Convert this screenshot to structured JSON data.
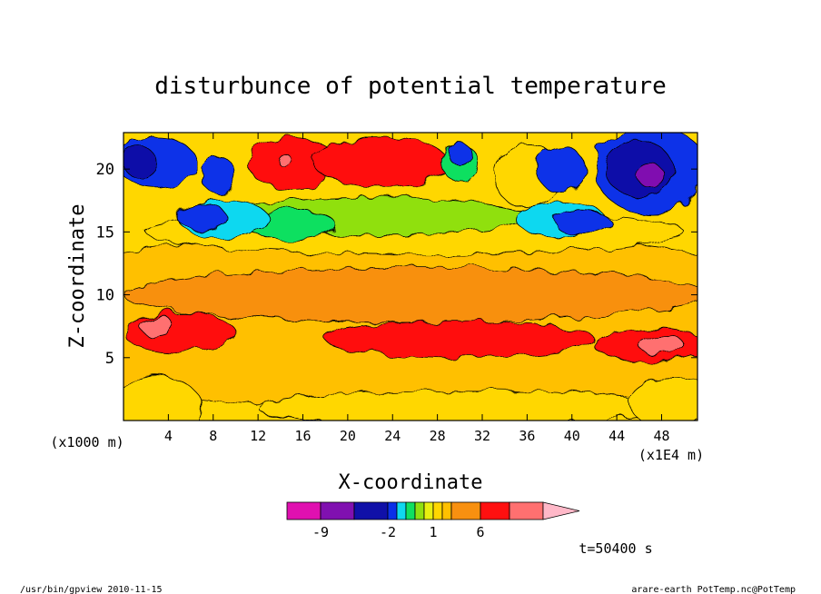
{
  "chart_data": {
    "type": "heatmap",
    "title": "disturbunce of potential temperature",
    "xlabel": "X-coordinate",
    "ylabel": "Z-coordinate",
    "x_unit_left": "(x1000 m)",
    "x_unit_right": "(x1E4 m)",
    "xlim": [
      0,
      51.2
    ],
    "ylim": [
      0,
      22.9
    ],
    "x_ticks": [
      4,
      8,
      12,
      16,
      20,
      24,
      28,
      32,
      36,
      40,
      44,
      48
    ],
    "y_ticks": [
      5,
      10,
      15,
      20
    ],
    "time_label": "t=50400 s",
    "colorbar": {
      "levels": [
        -12,
        -9,
        -6,
        -2,
        -1.5,
        -1,
        -0.5,
        0.5,
        1,
        1.5,
        2,
        6,
        9,
        12
      ],
      "tick_labels": [
        "-9",
        "-2",
        "1",
        "6"
      ],
      "colors": [
        "#e010b0",
        "#8010b0",
        "#1010a8",
        "#0a30e8",
        "#10d8f0",
        "#10e060",
        "#90e010",
        "#e8f010",
        "#ffd700",
        "#ffc000",
        "#f89010",
        "#ff1010",
        "#ff7070",
        "#ffb8c8"
      ]
    },
    "regions": [
      {
        "value": 1.2,
        "x": 25,
        "z": 8,
        "rx": 40,
        "rz": 7
      },
      {
        "value": 1.7,
        "x": 26,
        "z": 10,
        "rx": 26,
        "rz": 2.2
      },
      {
        "value": 2.5,
        "x": 30,
        "z": 6.5,
        "rx": 12,
        "rz": 1.4
      },
      {
        "value": 2.5,
        "x": 5,
        "z": 7,
        "rx": 5,
        "rz": 1.6
      },
      {
        "value": 2.5,
        "x": 47,
        "z": 6,
        "rx": 5,
        "rz": 1.4
      },
      {
        "value": 7,
        "x": 3,
        "z": 7.5,
        "rx": 1.5,
        "rz": 0.8
      },
      {
        "value": 7,
        "x": 48,
        "z": 6,
        "rx": 2,
        "rz": 0.8
      },
      {
        "value": 0.7,
        "x": 30,
        "z": 1,
        "rx": 18,
        "rz": 1.4
      },
      {
        "value": 0.7,
        "x": 3,
        "z": 1,
        "rx": 4,
        "rz": 2.5
      },
      {
        "value": 0.7,
        "x": 49,
        "z": 1.5,
        "rx": 4,
        "rz": 2
      },
      {
        "value": 0.7,
        "x": 26,
        "z": 15,
        "rx": 24,
        "rz": 1.8
      },
      {
        "value": -0.7,
        "x": 22,
        "z": 16.2,
        "rx": 14,
        "rz": 1.5
      },
      {
        "value": -1.2,
        "x": 15,
        "z": 15.5,
        "rx": 4,
        "rz": 1.2
      },
      {
        "value": -1.7,
        "x": 9,
        "z": 16,
        "rx": 4,
        "rz": 1.5
      },
      {
        "value": -1.7,
        "x": 39,
        "z": 16,
        "rx": 4,
        "rz": 1.3
      },
      {
        "value": -3,
        "x": 7,
        "z": 16.2,
        "rx": 2.2,
        "rz": 1
      },
      {
        "value": -3,
        "x": 41,
        "z": 15.7,
        "rx": 2.5,
        "rz": 0.9
      },
      {
        "value": 2.5,
        "x": 15,
        "z": 20.5,
        "rx": 4,
        "rz": 2
      },
      {
        "value": 2.5,
        "x": 23,
        "z": 20.5,
        "rx": 6,
        "rz": 2
      },
      {
        "value": 7,
        "x": 14.5,
        "z": 20.6,
        "rx": 0.6,
        "rz": 0.5
      },
      {
        "value": 0.7,
        "x": 36,
        "z": 19.5,
        "rx": 3,
        "rz": 2.5
      },
      {
        "value": -1.2,
        "x": 30,
        "z": 20.5,
        "rx": 1.6,
        "rz": 1.5
      },
      {
        "value": -3,
        "x": 30,
        "z": 21.2,
        "rx": 1,
        "rz": 0.9
      },
      {
        "value": -3,
        "x": 8.5,
        "z": 19.5,
        "rx": 1.6,
        "rz": 1.4
      },
      {
        "value": -3,
        "x": 3,
        "z": 20.5,
        "rx": 3.5,
        "rz": 2
      },
      {
        "value": -7,
        "x": 1.5,
        "z": 20.5,
        "rx": 1.5,
        "rz": 1.2
      },
      {
        "value": -3,
        "x": 47,
        "z": 20,
        "rx": 5,
        "rz": 3.5
      },
      {
        "value": -7,
        "x": 46,
        "z": 20,
        "rx": 3,
        "rz": 2.2
      },
      {
        "value": -10,
        "x": 47,
        "z": 19.5,
        "rx": 1.2,
        "rz": 0.9
      },
      {
        "value": -3,
        "x": 39,
        "z": 20,
        "rx": 2.2,
        "rz": 1.8
      }
    ]
  },
  "footer": {
    "left": "/usr/bin/gpview  2010-11-15",
    "right": "arare-earth_PotTemp.nc@PotTemp"
  }
}
